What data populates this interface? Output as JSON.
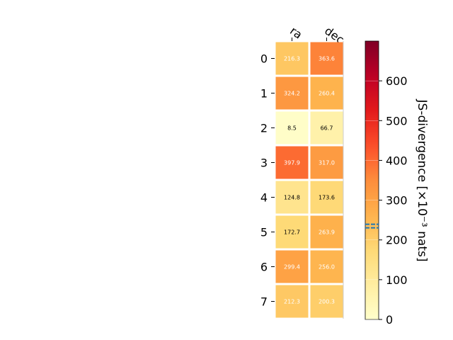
{
  "chart_data": {
    "type": "heatmap",
    "columns": [
      "ra",
      "dec"
    ],
    "rows": [
      "0",
      "1",
      "2",
      "3",
      "4",
      "5",
      "6",
      "7"
    ],
    "values": [
      [
        216.3,
        363.6
      ],
      [
        324.2,
        260.4
      ],
      [
        8.5,
        66.7
      ],
      [
        397.9,
        317.0
      ],
      [
        124.8,
        173.6
      ],
      [
        172.7,
        263.9
      ],
      [
        299.4,
        256.0
      ],
      [
        212.3,
        200.3
      ]
    ],
    "value_labels": [
      [
        "216.3",
        "363.6"
      ],
      [
        "324.2",
        "260.4"
      ],
      [
        "8.5",
        "66.7"
      ],
      [
        "397.9",
        "317.0"
      ],
      [
        "124.8",
        "173.6"
      ],
      [
        "172.7",
        "263.9"
      ],
      [
        "299.4",
        "256.0"
      ],
      [
        "212.3",
        "200.3"
      ]
    ],
    "colorbar": {
      "label": "JS-divergence [×10⁻³ nats]",
      "range": [
        0,
        700
      ],
      "ticks": [
        0,
        100,
        200,
        300,
        400,
        500,
        600
      ],
      "tick_labels": [
        "0",
        "100",
        "200",
        "300",
        "400",
        "500",
        "600"
      ],
      "colormap": "YlOrRd",
      "marker_value": 235,
      "marker_color": "#1f77b4"
    },
    "grid": false
  }
}
